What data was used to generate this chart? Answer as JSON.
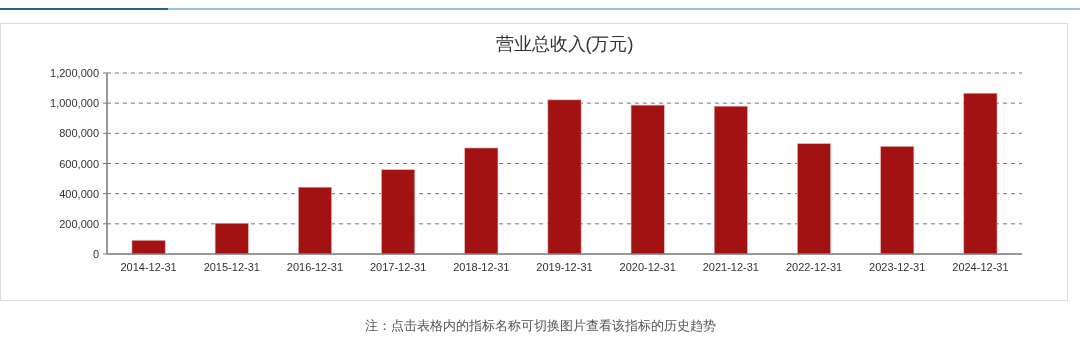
{
  "chart_data": {
    "type": "bar",
    "title": "营业总收入(万元)",
    "categories": [
      "2014-12-31",
      "2015-12-31",
      "2016-12-31",
      "2017-12-31",
      "2018-12-31",
      "2019-12-31",
      "2020-12-31",
      "2021-12-31",
      "2022-12-31",
      "2023-12-31",
      "2024-12-31"
    ],
    "values": [
      91000,
      204000,
      443000,
      559000,
      703000,
      1022000,
      987000,
      980000,
      732000,
      714000,
      1066000
    ],
    "color": "#a31212",
    "ylim": [
      0,
      1200000
    ],
    "yticks": [
      0,
      {
        "value": 200000,
        "label": "200,000"
      },
      {
        "value": 400000,
        "label": "400,000"
      },
      {
        "value": 600000,
        "label": "600,000"
      },
      {
        "value": 800000,
        "label": "800,000"
      },
      {
        "value": 1000000,
        "label": "1,000,000"
      },
      {
        "value": 1200000,
        "label": "1,200,000"
      }
    ],
    "grid": "y",
    "annotations": [
      "注：点击表格内的指标名称可切换图片查看该指标的历史趋势"
    ]
  }
}
